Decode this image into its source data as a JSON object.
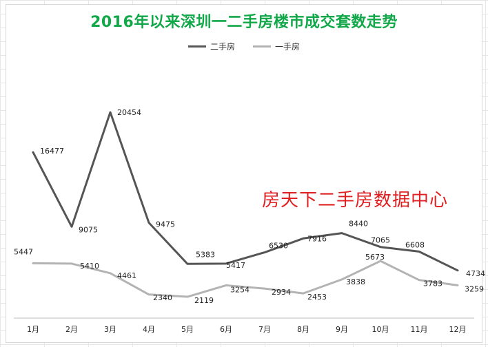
{
  "chart_data": {
    "type": "line",
    "title": "2016年以来深圳一二手房楼市成交套数走势",
    "categories": [
      "1月",
      "2月",
      "3月",
      "4月",
      "5月",
      "6月",
      "7月",
      "8月",
      "9月",
      "10月",
      "11月",
      "12月"
    ],
    "series": [
      {
        "name": "二手房",
        "color": "#555555",
        "values": [
          16477,
          9075,
          20454,
          9475,
          5383,
          5417,
          6530,
          7916,
          8440,
          7065,
          6608,
          4734
        ]
      },
      {
        "name": "一手房",
        "color": "#b3b3b3",
        "values": [
          5447,
          5410,
          4461,
          2340,
          2119,
          3254,
          2934,
          2453,
          3838,
          5673,
          3783,
          3259
        ]
      }
    ],
    "ylim": [
      0,
      22000
    ],
    "grid": false,
    "legend_position": "top",
    "xlabel": "",
    "ylabel": ""
  },
  "overlay_text": "房天下二手房数据中心"
}
